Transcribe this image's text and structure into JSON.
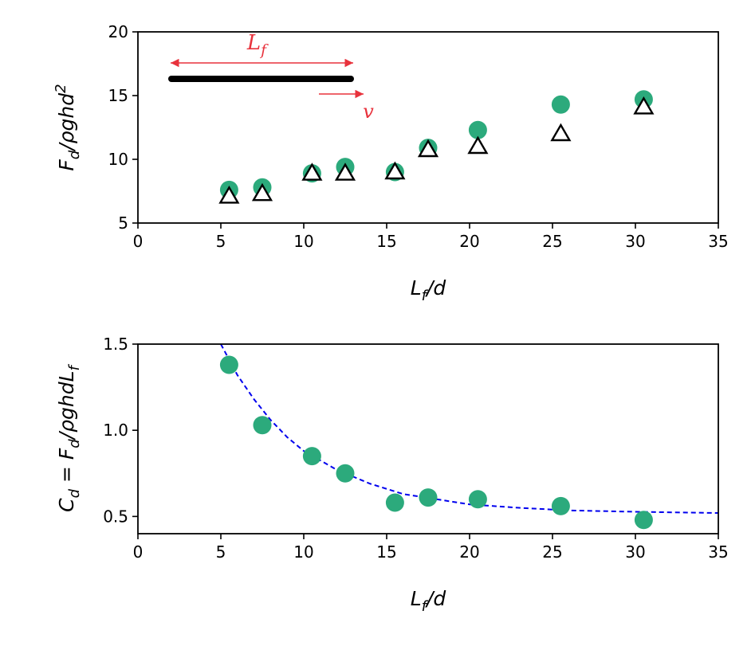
{
  "chart_data": [
    {
      "type": "scatter",
      "x": [
        5.5,
        7.5,
        10.5,
        12.5,
        15.5,
        17.5,
        20.5,
        25.5,
        30.5
      ],
      "series": [
        {
          "color": "#2caa7c",
          "marker": "circle",
          "values": [
            7.6,
            7.8,
            8.9,
            9.4,
            9.0,
            10.9,
            12.3,
            14.3,
            14.7
          ]
        },
        {
          "color": "#000000",
          "marker": "triangle",
          "values": [
            7.1,
            7.3,
            8.9,
            8.9,
            9.0,
            10.75,
            11.0,
            12.0,
            14.1
          ]
        }
      ],
      "xlim": [
        0,
        35
      ],
      "xticks": [
        0,
        5,
        10,
        15,
        20,
        25,
        30,
        35
      ],
      "ylim": [
        5,
        20
      ],
      "yticks": [
        5,
        10,
        15,
        20
      ],
      "xlabel": [
        {
          "text": "L"
        },
        {
          "text": "f",
          "script": "sub"
        },
        {
          "text": "/d"
        }
      ],
      "ylabel": [
        {
          "text": "F"
        },
        {
          "text": "d",
          "script": "sub"
        },
        {
          "text": "/ρghd"
        },
        {
          "text": "2",
          "script": "sup"
        }
      ],
      "annotations": [
        {
          "parts": [
            {
              "text": "L"
            },
            {
              "text": "f",
              "script": "sub"
            }
          ],
          "color": "#e8323c"
        },
        {
          "parts": [
            {
              "text": "v"
            }
          ],
          "color": "#e8323c"
        }
      ]
    },
    {
      "type": "scatter",
      "x": [
        5.5,
        7.5,
        10.5,
        12.5,
        15.5,
        17.5,
        20.5,
        25.5,
        30.5
      ],
      "series": [
        {
          "color": "#2caa7c",
          "marker": "circle",
          "values": [
            1.38,
            1.03,
            0.85,
            0.75,
            0.58,
            0.61,
            0.6,
            0.56,
            0.48
          ]
        }
      ],
      "fit": {
        "color": "#0000ee",
        "x": [
          5,
          6,
          7,
          8,
          9,
          10,
          12,
          14,
          16,
          18,
          20,
          23,
          26,
          30,
          35
        ],
        "values": [
          1.5,
          1.32,
          1.18,
          1.06,
          0.96,
          0.88,
          0.77,
          0.69,
          0.63,
          0.6,
          0.57,
          0.55,
          0.535,
          0.527,
          0.52
        ]
      },
      "xlim": [
        0,
        35
      ],
      "xticks": [
        0,
        5,
        10,
        15,
        20,
        25,
        30,
        35
      ],
      "ylim": [
        0.4,
        1.5
      ],
      "yticks": [
        0.5,
        {
          "value": 1.0,
          "label": "1.0"
        },
        1.5
      ],
      "xlabel": [
        {
          "text": "L"
        },
        {
          "text": "f",
          "script": "sub"
        },
        {
          "text": "/d"
        }
      ],
      "ylabel": [
        {
          "text": "C"
        },
        {
          "text": "d",
          "script": "sub"
        },
        {
          "text": " = F"
        },
        {
          "text": "d",
          "script": "sub"
        },
        {
          "text": "/ρghdL"
        },
        {
          "text": "f",
          "script": "sub"
        }
      ]
    }
  ]
}
